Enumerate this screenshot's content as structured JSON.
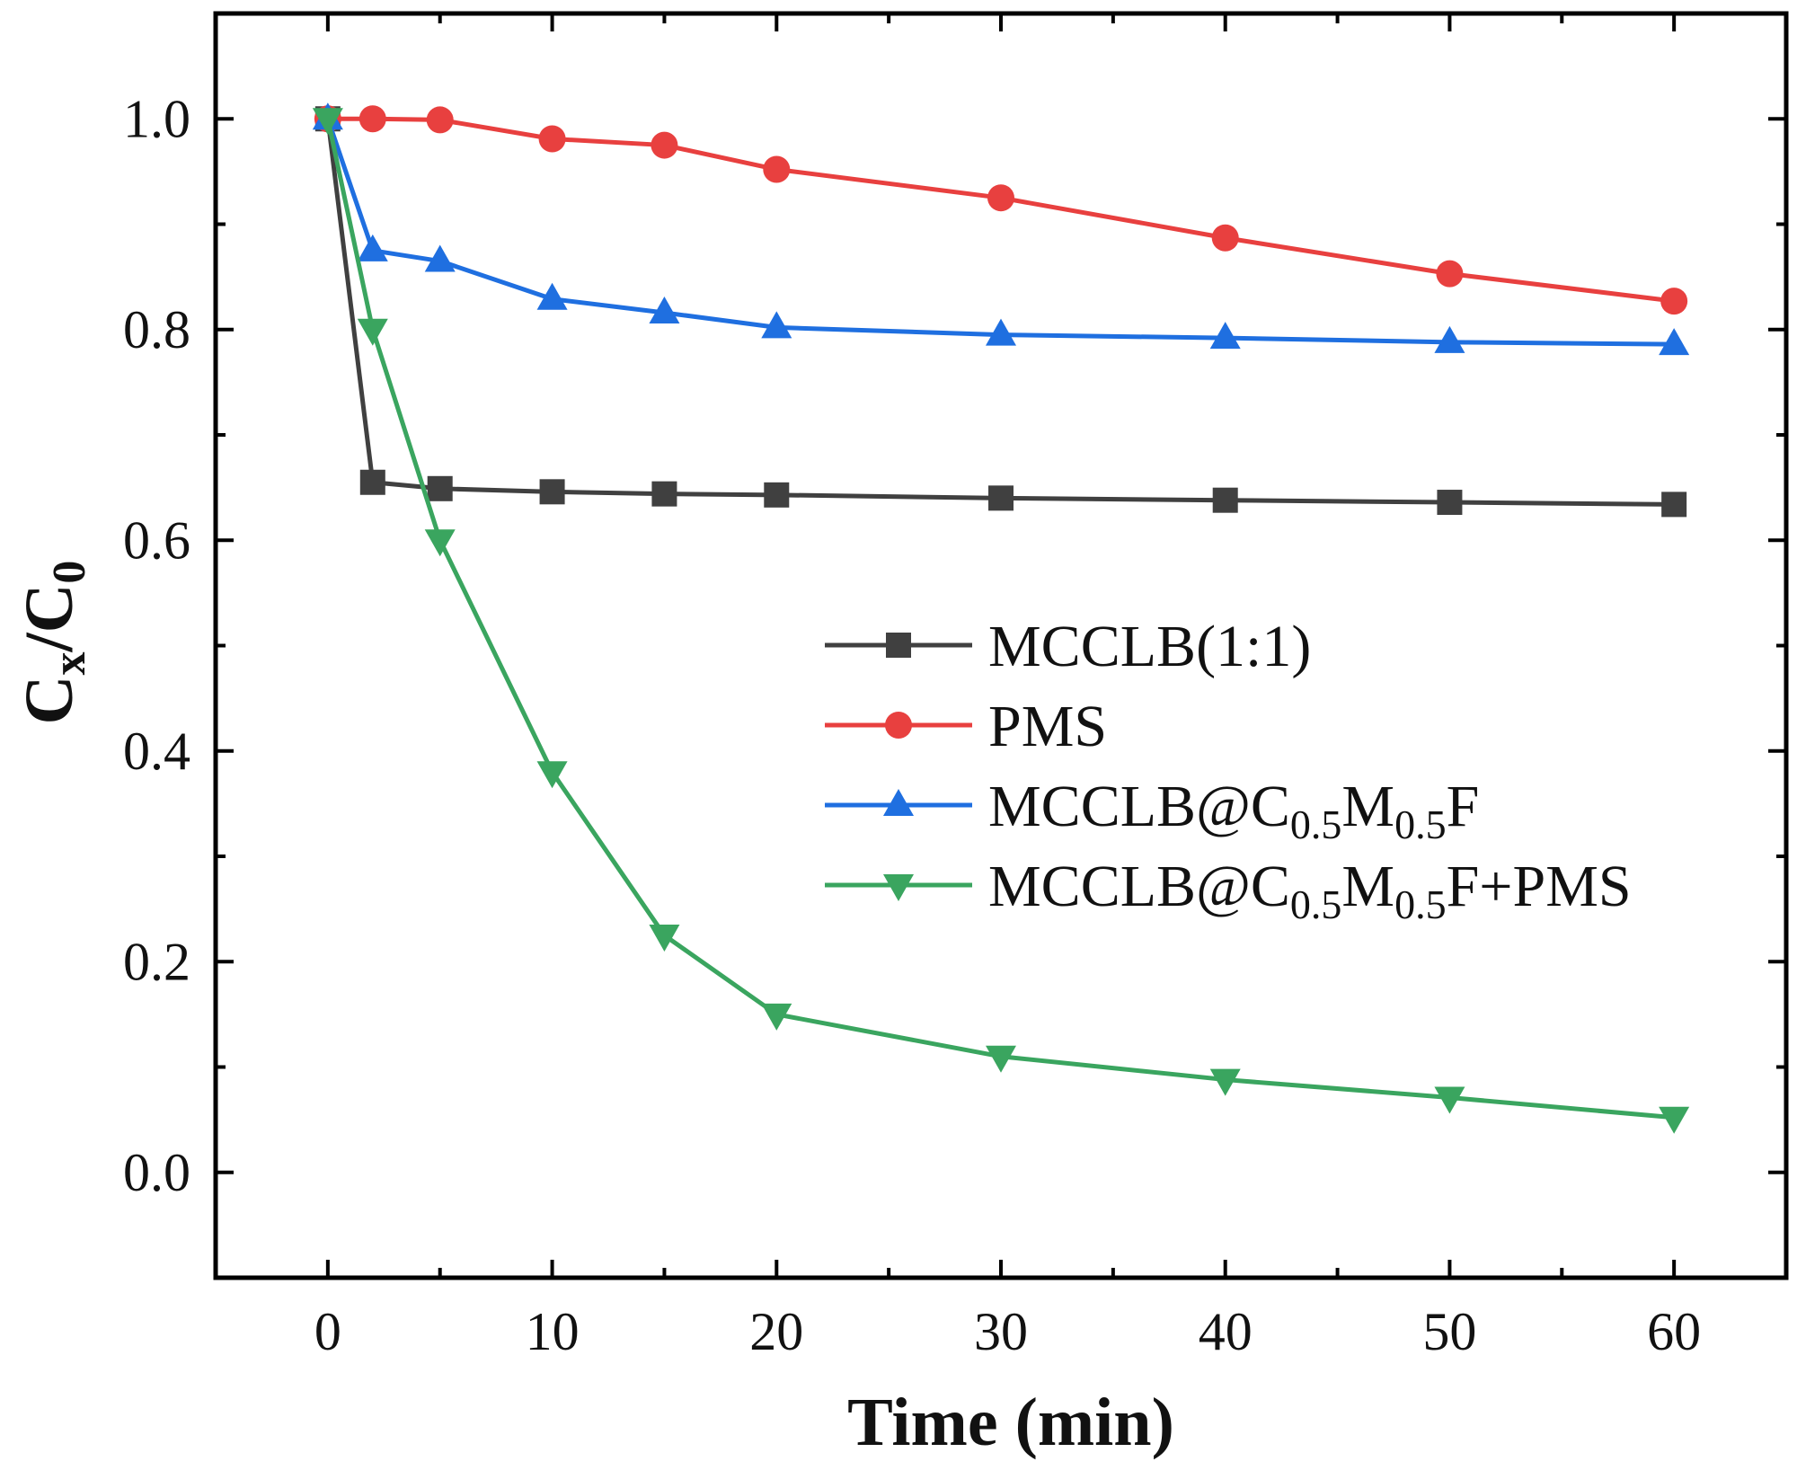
{
  "chart_data": {
    "type": "line",
    "xlabel": "Time (min)",
    "ylabel": {
      "main": "C",
      "sub1": "x",
      "slash": "/C",
      "sub2": "0"
    },
    "xlim": [
      -5,
      65
    ],
    "ylim": [
      -0.1,
      1.1
    ],
    "xticks": [
      0,
      10,
      20,
      30,
      40,
      50,
      60
    ],
    "xtick_labels": [
      "0",
      "10",
      "20",
      "30",
      "40",
      "50",
      "60"
    ],
    "yticks": [
      0.0,
      0.2,
      0.4,
      0.6,
      0.8,
      1.0
    ],
    "ytick_labels": [
      "0.0",
      "0.2",
      "0.4",
      "0.6",
      "0.8",
      "1.0"
    ],
    "grid": false,
    "legend_position": "center-right",
    "x": [
      0,
      2,
      5,
      10,
      15,
      20,
      30,
      40,
      50,
      60
    ],
    "series": [
      {
        "name": "MCCLB(1:1)",
        "legend_parts": [
          {
            "t": "MCCLB(1:1)",
            "sub": false
          }
        ],
        "color": "#404040",
        "marker": "square",
        "values": [
          1.0,
          0.655,
          0.649,
          0.646,
          0.644,
          0.643,
          0.64,
          0.638,
          0.636,
          0.634
        ]
      },
      {
        "name": "PMS",
        "legend_parts": [
          {
            "t": "PMS",
            "sub": false
          }
        ],
        "color": "#e8403f",
        "marker": "circle",
        "values": [
          1.0,
          1.0,
          0.999,
          0.981,
          0.975,
          0.952,
          0.925,
          0.887,
          0.853,
          0.827
        ]
      },
      {
        "name": "MCCLB@C0.5M0.5F",
        "legend_parts": [
          {
            "t": "MCCLB@C",
            "sub": false
          },
          {
            "t": "0.5",
            "sub": true
          },
          {
            "t": "M",
            "sub": false
          },
          {
            "t": "0.5",
            "sub": true
          },
          {
            "t": "F",
            "sub": false
          }
        ],
        "color": "#1f6fe0",
        "marker": "triangle-up",
        "values": [
          1.0,
          0.875,
          0.865,
          0.829,
          0.816,
          0.802,
          0.795,
          0.792,
          0.788,
          0.786
        ]
      },
      {
        "name": "MCCLB@C0.5M0.5F+PMS",
        "legend_parts": [
          {
            "t": "MCCLB@C",
            "sub": false
          },
          {
            "t": "0.5",
            "sub": true
          },
          {
            "t": "M",
            "sub": false
          },
          {
            "t": "0.5",
            "sub": true
          },
          {
            "t": "F+PMS",
            "sub": false
          }
        ],
        "color": "#3aa55f",
        "marker": "triangle-down",
        "values": [
          1.0,
          0.8,
          0.6,
          0.38,
          0.225,
          0.15,
          0.11,
          0.088,
          0.071,
          0.052
        ]
      }
    ]
  }
}
